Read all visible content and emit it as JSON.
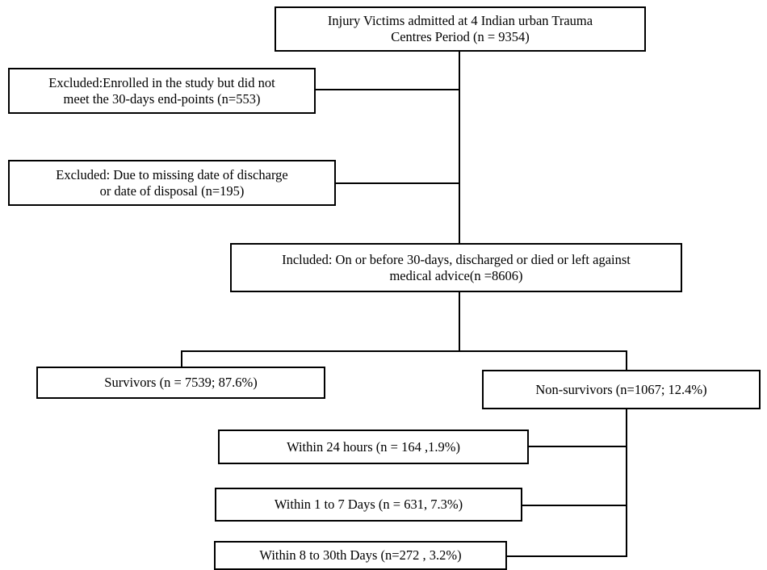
{
  "boxes": {
    "total": {
      "line1": "Injury Victims admitted at 4 Indian urban Trauma",
      "line2": "Centres Period (n = 9354)"
    },
    "excluded_endpoints": {
      "line1": "Excluded:Enrolled in the study but did not",
      "line2": "meet the 30-days end-points (n=553)"
    },
    "excluded_missing": {
      "line1": "Excluded: Due to missing date of discharge",
      "line2": "or date of disposal (n=195)"
    },
    "included": {
      "line1": "Included: On or before 30-days, discharged or died or left against",
      "line2": "medical advice(n =8606)"
    },
    "survivors": {
      "line1": "Survivors (n = 7539; 87.6%)"
    },
    "non_survivors": {
      "line1": "Non-survivors (n=1067; 12.4%)"
    },
    "within_24h": {
      "line1": "Within 24 hours (n = 164 ,1.9%)"
    },
    "within_1_7": {
      "line1": "Within 1 to 7 Days (n = 631, 7.3%)"
    },
    "within_8_30": {
      "line1": "Within 8 to 30th Days (n=272 , 3.2%)"
    }
  }
}
